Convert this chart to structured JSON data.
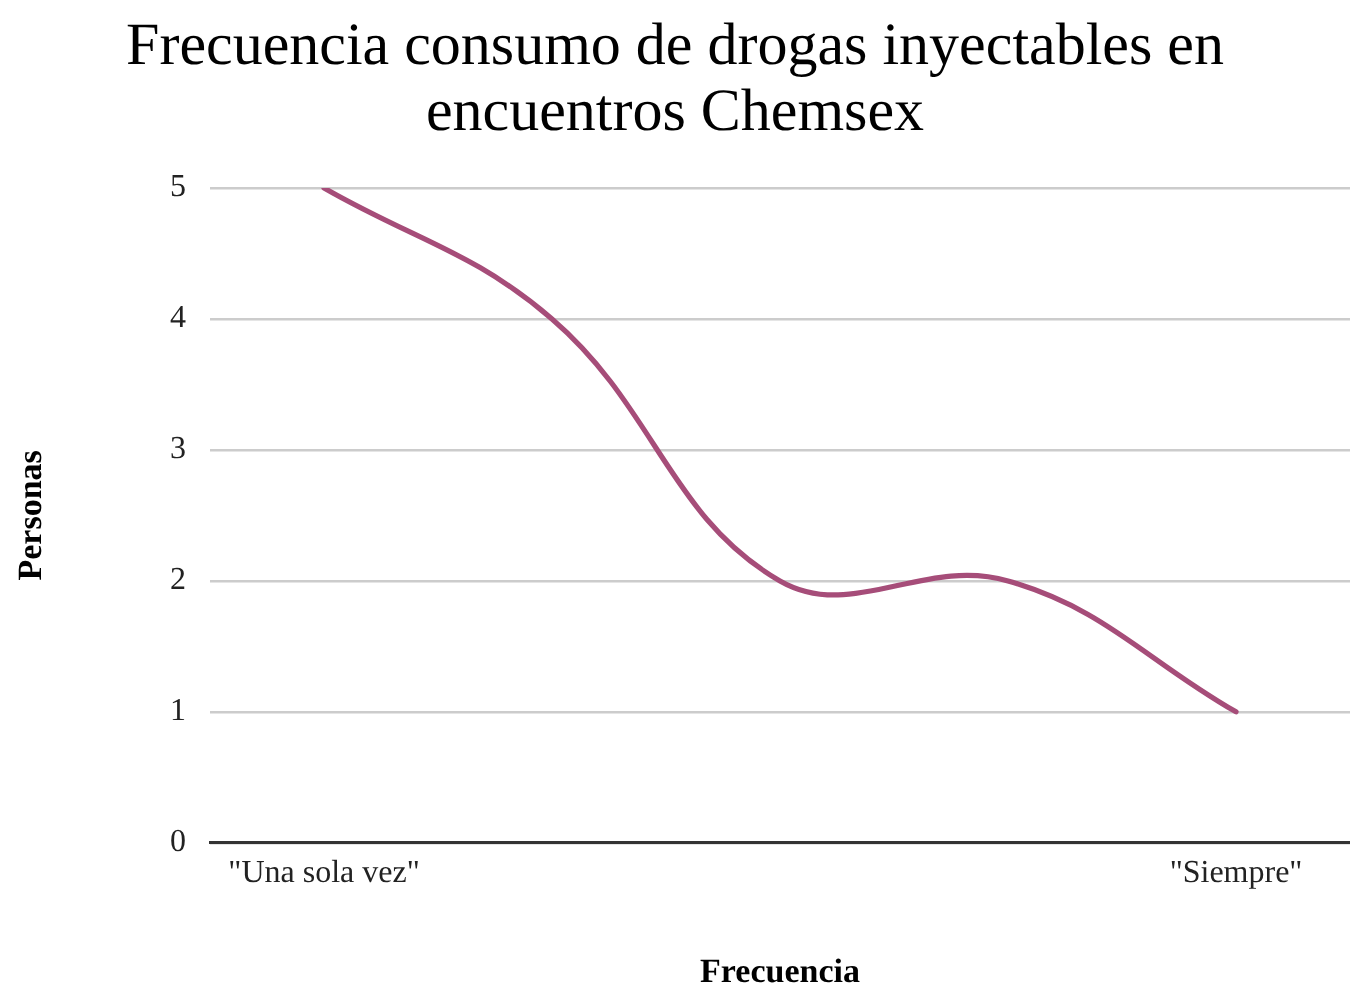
{
  "chart_data": {
    "type": "line",
    "title": "Frecuencia consumo de drogas inyectables en encuentros Chemsex",
    "xlabel": "Frecuencia",
    "ylabel": "Personas",
    "categories": [
      "\"Una sola vez\"",
      null,
      null,
      null,
      "\"Siempre\""
    ],
    "values": [
      5,
      4,
      2,
      2,
      1
    ],
    "color": "#a64d79",
    "ylim": [
      0,
      5
    ],
    "yticks": [
      0,
      1,
      2,
      3,
      4,
      5
    ],
    "grid": "y",
    "marker": "none",
    "line_style": "solid"
  }
}
